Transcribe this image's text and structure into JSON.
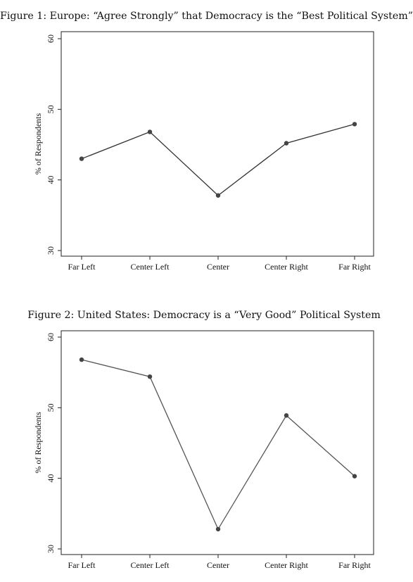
{
  "chart_data": [
    {
      "type": "line",
      "title": "Figure 1: Europe: “Agree Strongly” that Democracy is the “Best Political System”",
      "xlabel": "",
      "ylabel": "% of Respondents",
      "categories": [
        "Far Left",
        "Center Left",
        "Center",
        "Center Right",
        "Far Right"
      ],
      "values": [
        43.0,
        46.8,
        37.8,
        45.2,
        47.9
      ],
      "ylim": [
        30,
        60
      ],
      "yticks": [
        "30",
        "40",
        "50",
        "60"
      ],
      "grid": false,
      "line_color": "#333333"
    },
    {
      "type": "line",
      "title": "Figure 2: United States: Democracy is a “Very Good” Political System",
      "xlabel": "",
      "ylabel": "% of Respondents",
      "categories": [
        "Far Left",
        "Center Left",
        "Center",
        "Center Right",
        "Far Right"
      ],
      "values": [
        56.8,
        54.4,
        32.8,
        48.9,
        40.3
      ],
      "ylim": [
        30,
        60
      ],
      "yticks": [
        "30",
        "40",
        "50",
        "60"
      ],
      "grid": false,
      "line_color": "#555555"
    }
  ]
}
